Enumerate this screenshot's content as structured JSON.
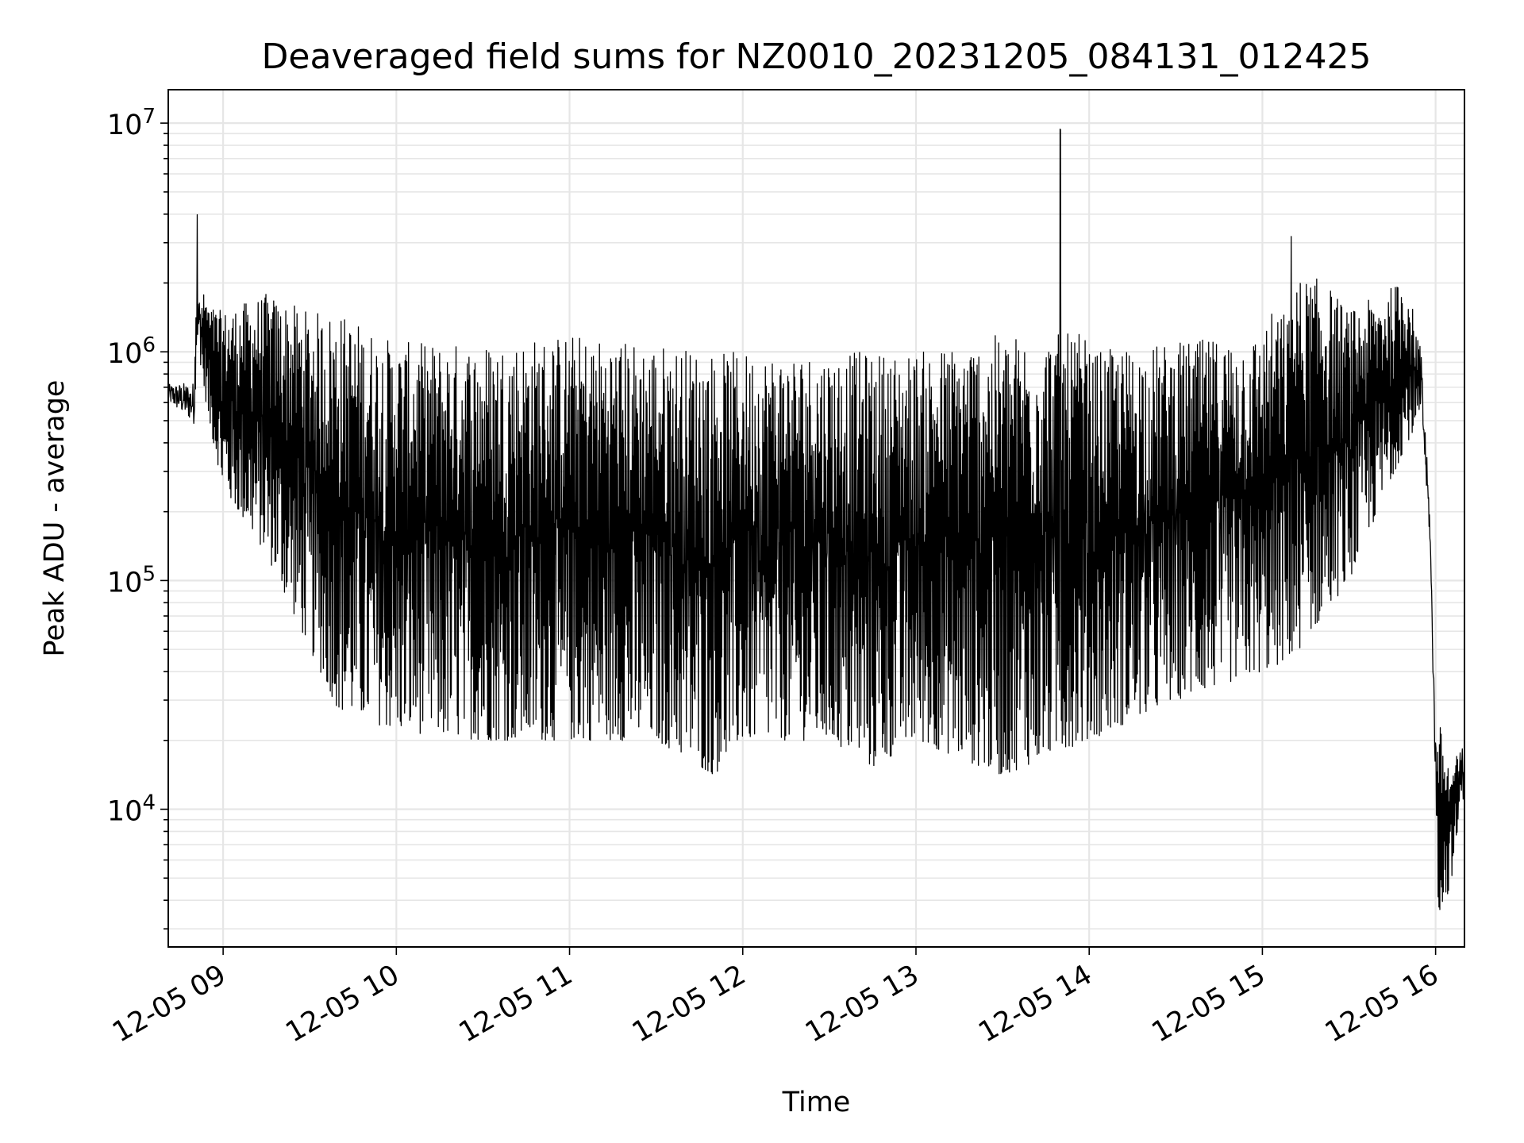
{
  "chart_data": {
    "type": "line",
    "title": "Deaveraged field sums for NZ0010_20231205_084131_012425",
    "xlabel": "Time",
    "ylabel": "Peak ADU - average",
    "x_ticks": [
      "12-05 09",
      "12-05 10",
      "12-05 11",
      "12-05 12",
      "12-05 13",
      "12-05 14",
      "12-05 15",
      "12-05 16"
    ],
    "xlim": [
      "2023-12-05 08:41",
      "2023-12-05 16:10"
    ],
    "y_scale": "log",
    "y_ticks": [
      {
        "value": 10000,
        "base": "10",
        "exp": "4"
      },
      {
        "value": 100000,
        "base": "10",
        "exp": "5"
      },
      {
        "value": 1000000,
        "base": "10",
        "exp": "6"
      },
      {
        "value": 10000000,
        "base": "10",
        "exp": "7"
      }
    ],
    "ylim": [
      2500,
      14000000
    ],
    "grid": true,
    "line_color": "#000000",
    "series": [
      {
        "description_of_envelope": "dense oscillating series; upper and lower envelope values per time",
        "points": [
          {
            "t": "2023-12-05 08:41",
            "upper": 720000,
            "lower": 600000
          },
          {
            "t": "2023-12-05 08:50",
            "upper": 740000,
            "lower": 480000
          },
          {
            "t": "2023-12-05 08:51",
            "upper": 4000000,
            "lower": 1100000
          },
          {
            "t": "2023-12-05 08:55",
            "upper": 1600000,
            "lower": 500000
          },
          {
            "t": "2023-12-05 09:00",
            "upper": 1500000,
            "lower": 250000
          },
          {
            "t": "2023-12-05 09:15",
            "upper": 1800000,
            "lower": 130000
          },
          {
            "t": "2023-12-05 09:30",
            "upper": 1500000,
            "lower": 50000
          },
          {
            "t": "2023-12-05 09:40",
            "upper": 1500000,
            "lower": 27000
          },
          {
            "t": "2023-12-05 10:00",
            "upper": 1100000,
            "lower": 22000
          },
          {
            "t": "2023-12-05 10:30",
            "upper": 1100000,
            "lower": 20000
          },
          {
            "t": "2023-12-05 11:00",
            "upper": 1200000,
            "lower": 20000
          },
          {
            "t": "2023-12-05 11:30",
            "upper": 1100000,
            "lower": 20000
          },
          {
            "t": "2023-12-05 11:50",
            "upper": 1000000,
            "lower": 14000
          },
          {
            "t": "2023-12-05 12:00",
            "upper": 1000000,
            "lower": 20000
          },
          {
            "t": "2023-12-05 12:30",
            "upper": 1000000,
            "lower": 20000
          },
          {
            "t": "2023-12-05 12:45",
            "upper": 1000000,
            "lower": 15000
          },
          {
            "t": "2023-12-05 13:00",
            "upper": 1000000,
            "lower": 20000
          },
          {
            "t": "2023-12-05 13:30",
            "upper": 1200000,
            "lower": 14000
          },
          {
            "t": "2023-12-05 13:50",
            "upper": 9500000,
            "lower": 18000
          },
          {
            "t": "2023-12-05 14:00",
            "upper": 1000000,
            "lower": 20000
          },
          {
            "t": "2023-12-05 14:30",
            "upper": 1100000,
            "lower": 30000
          },
          {
            "t": "2023-12-05 15:00",
            "upper": 1200000,
            "lower": 40000
          },
          {
            "t": "2023-12-05 15:10",
            "upper": 3200000,
            "lower": 45000
          },
          {
            "t": "2023-12-05 15:30",
            "upper": 1500000,
            "lower": 100000
          },
          {
            "t": "2023-12-05 15:50",
            "upper": 2100000,
            "lower": 400000
          },
          {
            "t": "2023-12-05 15:55",
            "upper": 1000000,
            "lower": 500000
          },
          {
            "t": "2023-12-05 15:58",
            "upper": 200000,
            "lower": 150000
          },
          {
            "t": "2023-12-05 16:00",
            "upper": 20000,
            "lower": 12000
          },
          {
            "t": "2023-12-05 16:01",
            "upper": 25000,
            "lower": 3500
          },
          {
            "t": "2023-12-05 16:05",
            "upper": 15000,
            "lower": 4500
          },
          {
            "t": "2023-12-05 16:10",
            "upper": 20000,
            "lower": 12000
          }
        ]
      }
    ]
  }
}
